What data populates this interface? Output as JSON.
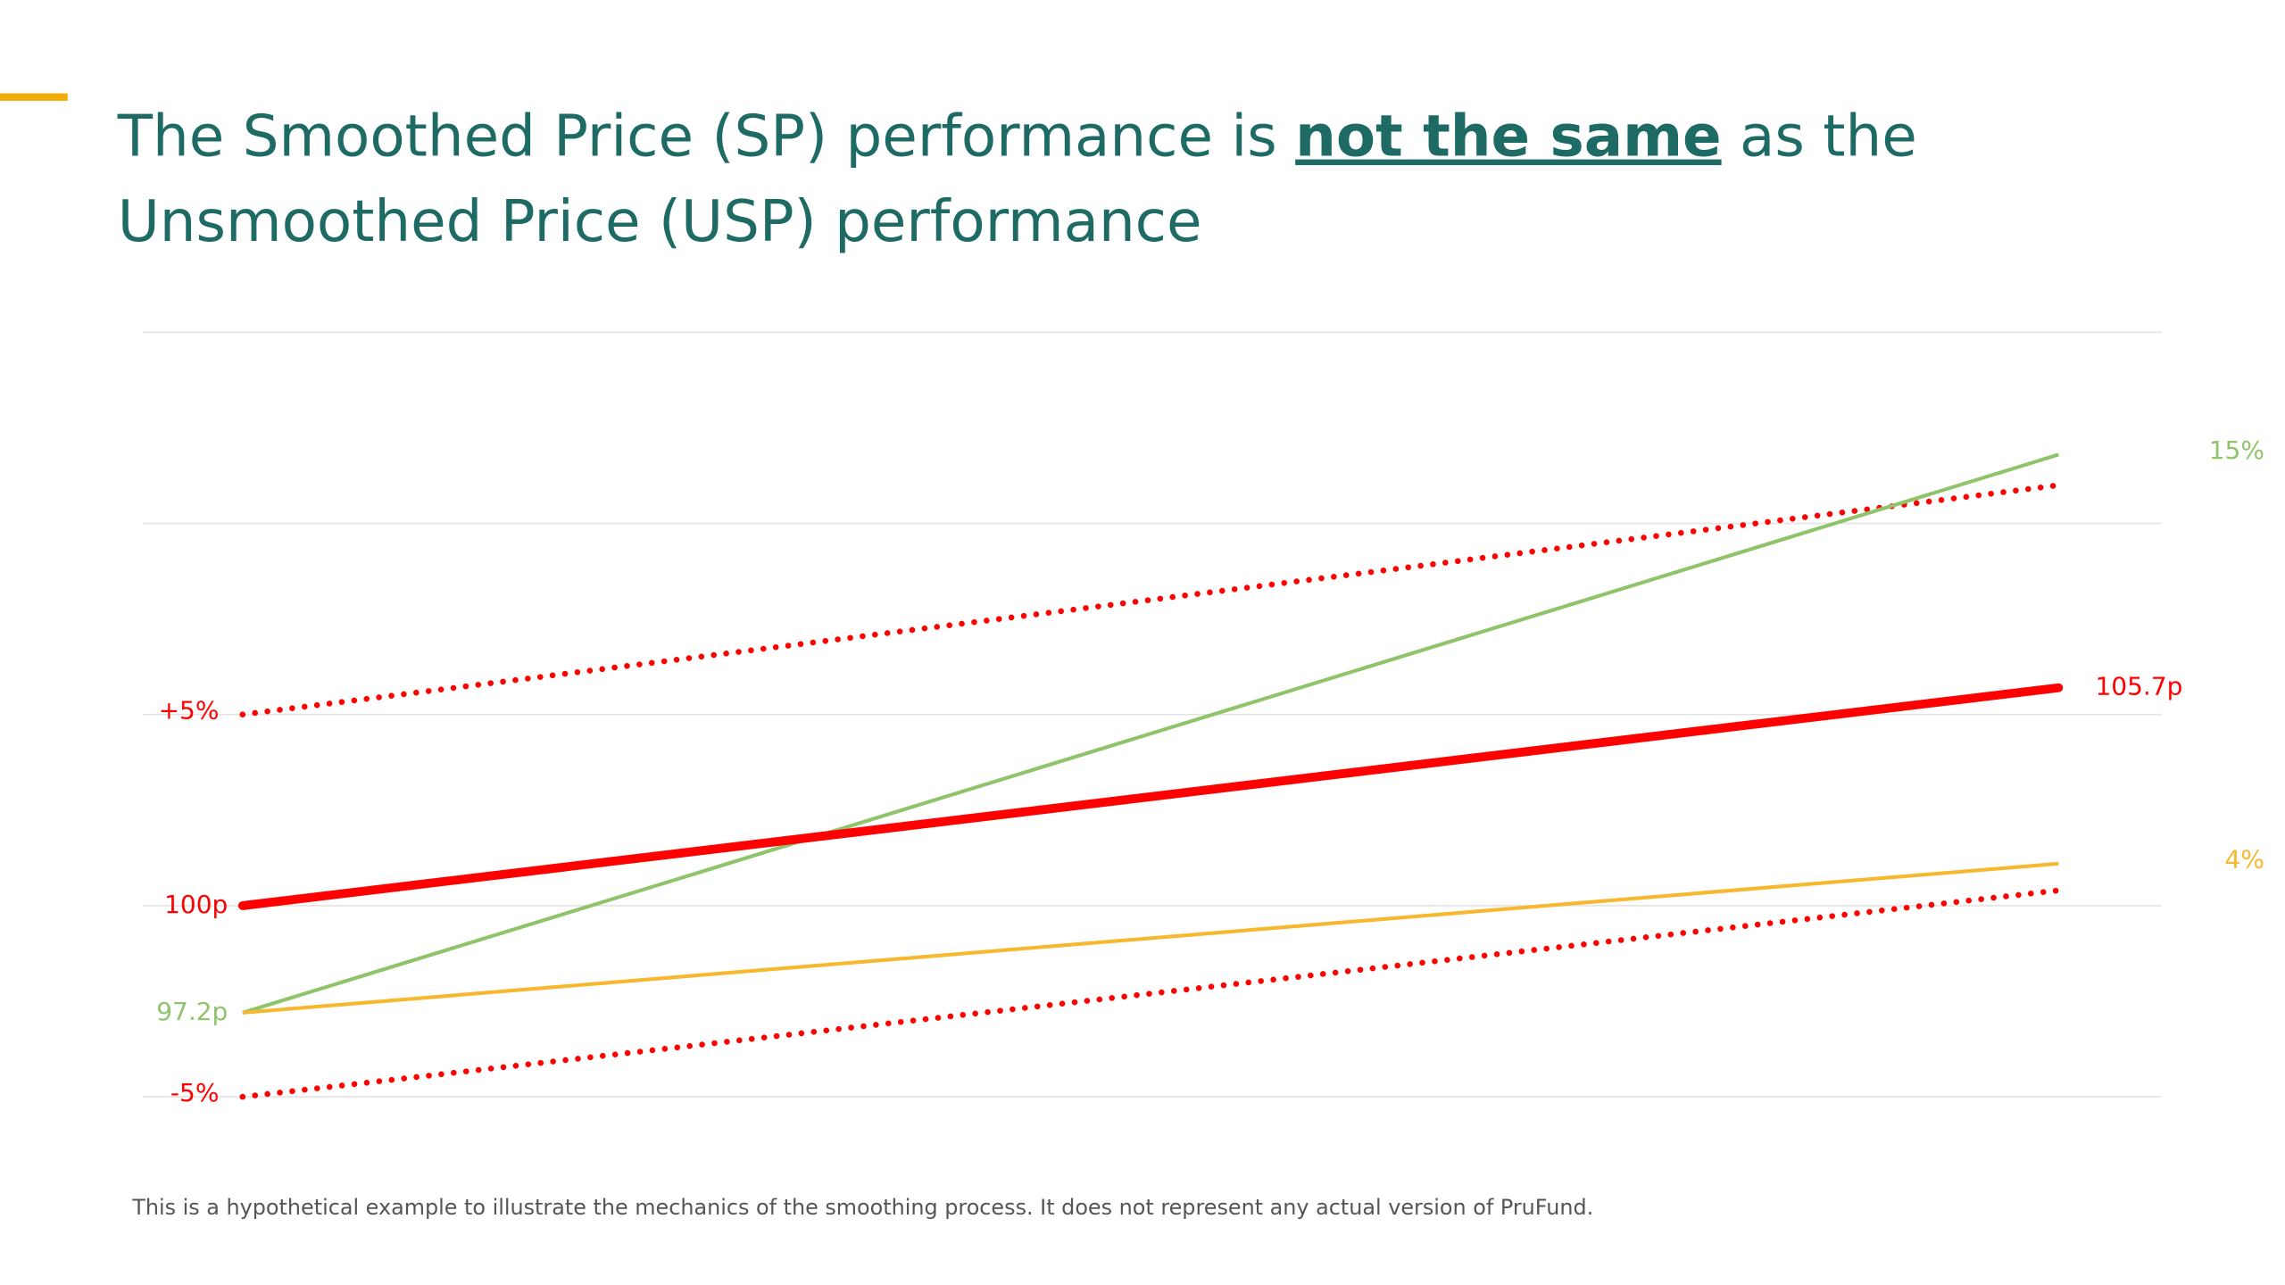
{
  "chart_data": {
    "type": "line",
    "title": [
      [
        "The Smoothed Price (SP) performance is ",
        "not the same",
        " as the"
      ],
      [
        "Unsmoothed Price (USP) performance"
      ]
    ],
    "footnote": "This is a hypothetical example to illustrate the mechanics of the smoothing process.  It does not represent any actual version of PruFund.",
    "categories": [
      null,
      null
    ],
    "ylim": [
      95,
      115
    ],
    "yticks": [
      95,
      100,
      105,
      110,
      115
    ],
    "grid": true,
    "series": [
      {
        "color": "#ff0000",
        "style": "dotted",
        "values": [
          105,
          111
        ],
        "start_label": "+5%"
      },
      {
        "color": "#ff0000",
        "style": "dotted",
        "values": [
          95,
          100.4
        ],
        "start_label": "-5%"
      },
      {
        "color": "#8fc46a",
        "style": "solid",
        "values": [
          97.2,
          111.8
        ],
        "value_labels": [
          "97.2p",
          null
        ],
        "end_label": "15%"
      },
      {
        "color": "#f5b82e",
        "style": "solid",
        "values": [
          97.2,
          101.1
        ],
        "end_label": "4%"
      },
      {
        "color": "#ff0000",
        "style": "bold",
        "values": [
          100,
          105.7
        ],
        "value_labels": [
          "100p",
          "105.7p"
        ]
      }
    ]
  }
}
